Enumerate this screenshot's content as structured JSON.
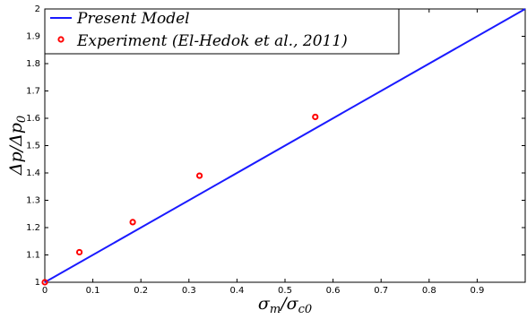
{
  "chart_data": {
    "type": "scatter",
    "title": "",
    "xlabel": "σm/σc0",
    "ylabel": "Δp/Δp0",
    "xlim": [
      0,
      1
    ],
    "ylim": [
      1,
      2
    ],
    "x_ticks": [
      0,
      0.1,
      0.2,
      0.3,
      0.4,
      0.5,
      0.6,
      0.7,
      0.8,
      0.9
    ],
    "y_ticks": [
      1,
      1.1,
      1.2,
      1.3,
      1.4,
      1.5,
      1.6,
      1.7,
      1.8,
      1.9,
      2
    ],
    "grid": false,
    "legend_position": "top-left",
    "series": [
      {
        "name": "Present Model",
        "kind": "line",
        "color": "#1a1aff",
        "x": [
          0,
          1
        ],
        "y": [
          1.0,
          2.0
        ]
      },
      {
        "name": "Experiment (El-Hedok et al., 2011)",
        "kind": "scatter",
        "color": "#ff0000",
        "marker": "open-circle",
        "x": [
          0.0,
          0.072,
          0.183,
          0.322,
          0.563
        ],
        "y": [
          1.0,
          1.11,
          1.22,
          1.39,
          1.605
        ]
      }
    ]
  }
}
